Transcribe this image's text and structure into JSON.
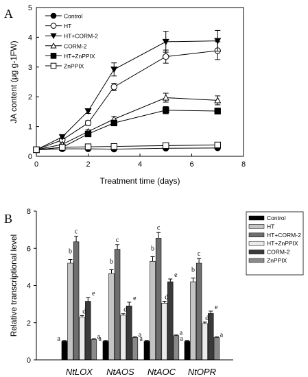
{
  "chart_data": [
    {
      "type": "line",
      "panel": "A",
      "xlabel": "Treatment time (days)",
      "ylabel": "JA content (μg g-1FW)",
      "xlim": [
        0,
        8
      ],
      "ylim": [
        0,
        5
      ],
      "xticks": [
        "0",
        "2",
        "4",
        "6",
        "8"
      ],
      "yticks": [
        "0",
        "1",
        "2",
        "3",
        "4",
        "5"
      ],
      "grid": false,
      "legend_position": "top-left",
      "x": [
        0,
        1,
        2,
        3,
        5,
        7
      ],
      "series": [
        {
          "name": "Control",
          "marker": "circle-filled",
          "values": [
            0.22,
            0.25,
            0.25,
            0.24,
            0.27,
            0.28
          ],
          "errors": [
            0.02,
            0.02,
            0.02,
            0.02,
            0.02,
            0.02
          ]
        },
        {
          "name": "HT",
          "marker": "circle-open",
          "values": [
            0.22,
            0.55,
            1.12,
            2.33,
            3.35,
            3.55
          ],
          "errors": [
            0.03,
            0.06,
            0.08,
            0.12,
            0.22,
            0.3
          ]
        },
        {
          "name": "HT+CORM-2",
          "marker": "triangle-down-filled",
          "values": [
            0.22,
            0.65,
            1.52,
            2.92,
            3.85,
            3.88
          ],
          "errors": [
            0.03,
            0.06,
            0.08,
            0.22,
            0.35,
            0.35
          ]
        },
        {
          "name": "CORM-2",
          "marker": "triangle-up-open",
          "values": [
            0.22,
            0.4,
            0.83,
            1.25,
            1.97,
            1.88
          ],
          "errors": [
            0.02,
            0.04,
            0.06,
            0.08,
            0.15,
            0.15
          ]
        },
        {
          "name": "HT+ZnPPIX",
          "marker": "square-filled",
          "values": [
            0.22,
            0.3,
            0.75,
            1.12,
            1.55,
            1.52
          ],
          "errors": [
            0.02,
            0.03,
            0.05,
            0.07,
            0.12,
            0.1
          ]
        },
        {
          "name": "ZnPPIX",
          "marker": "square-open",
          "values": [
            0.22,
            0.3,
            0.32,
            0.33,
            0.36,
            0.38
          ],
          "errors": [
            0.02,
            0.02,
            0.02,
            0.02,
            0.02,
            0.02
          ]
        }
      ]
    },
    {
      "type": "bar",
      "panel": "B",
      "ylabel": "Relative transcriptional level",
      "ylim": [
        0,
        8
      ],
      "yticks": [
        "0",
        "2",
        "4",
        "6",
        "8"
      ],
      "grid": false,
      "legend_position": "top-right",
      "categories": [
        "NtLOX",
        "NtAOS",
        "NtAOC",
        "NtOPR"
      ],
      "series": [
        {
          "name": "Control",
          "color": "#000000",
          "values": [
            1.0,
            1.0,
            1.0,
            1.0
          ],
          "errors": [
            0.04,
            0.04,
            0.04,
            0.04
          ],
          "labels": [
            "a",
            "a",
            "a",
            "a"
          ]
        },
        {
          "name": "HT",
          "color": "#c4c4c4",
          "values": [
            5.2,
            4.65,
            5.3,
            4.2
          ],
          "errors": [
            0.2,
            0.2,
            0.25,
            0.2
          ],
          "labels": [
            "b",
            "b",
            "b",
            "b"
          ]
        },
        {
          "name": "HT+CORM-2",
          "color": "#6e6e6e",
          "values": [
            6.35,
            5.95,
            6.55,
            5.2
          ],
          "errors": [
            0.3,
            0.25,
            0.3,
            0.25
          ],
          "labels": [
            "c",
            "c",
            "c",
            "c"
          ]
        },
        {
          "name": "HT+ZnPPIX",
          "color": "#ebebeb",
          "values": [
            2.3,
            2.4,
            3.05,
            1.95
          ],
          "errors": [
            0.08,
            0.08,
            0.1,
            0.08
          ],
          "labels": [
            "d",
            "d",
            "d",
            "d"
          ]
        },
        {
          "name": "CORM-2",
          "color": "#3a3a3a",
          "values": [
            3.15,
            2.9,
            4.2,
            2.5
          ],
          "errors": [
            0.2,
            0.2,
            0.15,
            0.12
          ],
          "labels": [
            "e",
            "e",
            "e",
            "e"
          ]
        },
        {
          "name": "ZnPPIX",
          "color": "#8a8a8a",
          "values": [
            1.1,
            1.2,
            1.3,
            1.2
          ],
          "errors": [
            0.04,
            0.04,
            0.04,
            0.04
          ],
          "labels": [
            "a",
            "a",
            "a",
            "a"
          ]
        }
      ]
    }
  ]
}
